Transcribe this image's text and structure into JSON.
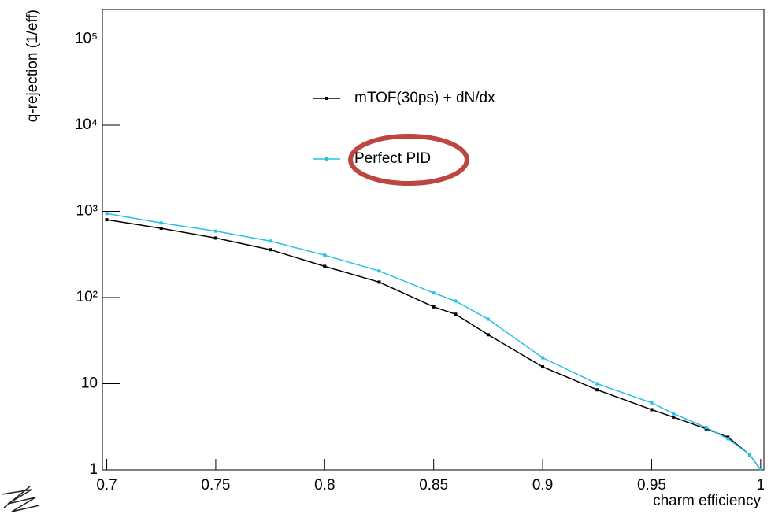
{
  "chart_data": {
    "type": "line",
    "x_label": "charm efficiency",
    "y_label": "q-rejection (1/eff)",
    "x": [
      0.7,
      0.725,
      0.75,
      0.775,
      0.8,
      0.825,
      0.85,
      0.86,
      0.875,
      0.9,
      0.925,
      0.95,
      0.96,
      0.975,
      0.985,
      0.995,
      1.0
    ],
    "series": [
      {
        "name": "mTOF(30ps) + dN/dx",
        "color": "#000000",
        "values": [
          800,
          635,
          490,
          359,
          230,
          151,
          78,
          64,
          37,
          15.7,
          8.5,
          5.0,
          4.1,
          3.0,
          2.4,
          1.5,
          1
        ]
      },
      {
        "name": "Perfect PID",
        "color": "#29c0e6",
        "values": [
          944,
          733,
          590,
          452,
          310,
          203,
          113,
          91,
          56,
          20,
          10,
          6.0,
          4.5,
          3.1,
          2.3,
          1.5,
          1
        ]
      }
    ],
    "xlim": [
      0.698,
      1.0015
    ],
    "ylim": [
      1,
      220000
    ],
    "log_y": true,
    "xticks": [
      0.7,
      0.75,
      0.8,
      0.85,
      0.9,
      0.95,
      1
    ],
    "yticks": [
      1,
      10,
      {
        "value": 100,
        "label": "10²"
      },
      {
        "value": 1000,
        "label": "10³"
      },
      {
        "value": 10000,
        "label": "10⁴"
      },
      {
        "value": 100000,
        "label": "10⁵"
      }
    ],
    "legend": "upper center"
  }
}
